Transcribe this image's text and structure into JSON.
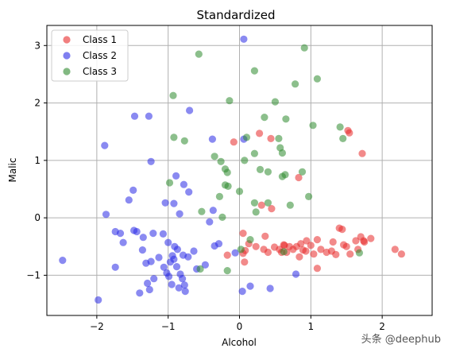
{
  "chart_data": {
    "type": "scatter",
    "title": "Standardized",
    "xlabel": "Alcohol",
    "ylabel": "Malic",
    "xlim": [
      -2.7,
      2.7
    ],
    "ylim": [
      -1.7,
      3.35
    ],
    "xticks": [
      -2,
      -1,
      0,
      1,
      2
    ],
    "yticks": [
      -1,
      0,
      1,
      2,
      3
    ],
    "grid": true,
    "legend_position": "upper-left",
    "series": [
      {
        "name": "Class 1",
        "color": "#e8292a",
        "points": [
          [
            -0.08,
            1.32
          ],
          [
            0.28,
            1.47
          ],
          [
            0.44,
            1.38
          ],
          [
            0.83,
            0.7
          ],
          [
            1.52,
            1.52
          ],
          [
            1.54,
            1.48
          ],
          [
            1.72,
            1.12
          ],
          [
            -0.17,
            -0.65
          ],
          [
            0.05,
            -0.27
          ],
          [
            0.13,
            -0.45
          ],
          [
            0.08,
            -0.57
          ],
          [
            0.07,
            -0.77
          ],
          [
            0.23,
            -0.5
          ],
          [
            0.36,
            -0.32
          ],
          [
            0.34,
            -0.55
          ],
          [
            0.4,
            -0.6
          ],
          [
            0.49,
            -0.51
          ],
          [
            0.56,
            -0.55
          ],
          [
            0.63,
            -0.48
          ],
          [
            0.66,
            -0.6
          ],
          [
            0.7,
            -0.5
          ],
          [
            0.75,
            -0.55
          ],
          [
            0.8,
            -0.5
          ],
          [
            0.86,
            -0.45
          ],
          [
            0.89,
            -0.56
          ],
          [
            0.94,
            -0.4
          ],
          [
            1.0,
            -0.48
          ],
          [
            1.04,
            -0.63
          ],
          [
            1.09,
            -0.38
          ],
          [
            1.14,
            -0.55
          ],
          [
            1.22,
            -0.6
          ],
          [
            1.29,
            -0.58
          ],
          [
            1.35,
            -0.64
          ],
          [
            1.4,
            -0.18
          ],
          [
            1.44,
            -0.2
          ],
          [
            1.46,
            -0.47
          ],
          [
            1.5,
            -0.5
          ],
          [
            1.55,
            -0.63
          ],
          [
            1.63,
            -0.4
          ],
          [
            1.66,
            -0.55
          ],
          [
            1.7,
            -0.33
          ],
          [
            1.74,
            -0.4
          ],
          [
            1.75,
            -0.42
          ],
          [
            1.84,
            -0.36
          ],
          [
            2.18,
            -0.55
          ],
          [
            2.27,
            -0.63
          ],
          [
            0.84,
            -0.68
          ],
          [
            1.09,
            -0.88
          ],
          [
            0.93,
            -0.58
          ],
          [
            0.62,
            -0.47
          ],
          [
            0.05,
            -0.62
          ],
          [
            0.31,
            0.22
          ],
          [
            0.45,
            0.16
          ],
          [
            0.59,
            -0.6
          ],
          [
            1.31,
            -0.42
          ]
        ]
      },
      {
        "name": "Class 2",
        "color": "#2a2ae6",
        "points": [
          [
            0.06,
            3.11
          ],
          [
            -0.7,
            1.87
          ],
          [
            -1.47,
            1.77
          ],
          [
            -1.27,
            1.77
          ],
          [
            -1.89,
            1.26
          ],
          [
            -0.38,
            1.37
          ],
          [
            0.06,
            1.37
          ],
          [
            -1.24,
            0.98
          ],
          [
            -0.89,
            0.73
          ],
          [
            -0.78,
            0.58
          ],
          [
            -0.71,
            0.45
          ],
          [
            -0.92,
            0.25
          ],
          [
            -1.49,
            0.48
          ],
          [
            -1.55,
            0.31
          ],
          [
            -1.04,
            0.26
          ],
          [
            -0.84,
            0.07
          ],
          [
            -0.37,
            0.13
          ],
          [
            -1.87,
            0.06
          ],
          [
            -0.42,
            -0.07
          ],
          [
            -1.74,
            -0.24
          ],
          [
            -1.67,
            -0.27
          ],
          [
            -1.63,
            -0.43
          ],
          [
            -1.48,
            -0.22
          ],
          [
            -1.44,
            -0.24
          ],
          [
            -1.21,
            -0.27
          ],
          [
            -1.07,
            -0.28
          ],
          [
            -1.0,
            -0.43
          ],
          [
            -0.91,
            -0.5
          ],
          [
            -0.79,
            -0.65
          ],
          [
            -0.72,
            -0.68
          ],
          [
            -0.64,
            -0.58
          ],
          [
            -0.35,
            -0.49
          ],
          [
            -0.29,
            -0.45
          ],
          [
            -1.36,
            -0.56
          ],
          [
            -1.31,
            -0.79
          ],
          [
            -1.24,
            -0.76
          ],
          [
            -1.13,
            -0.69
          ],
          [
            -1.06,
            -0.86
          ],
          [
            -1.02,
            -0.96
          ],
          [
            -0.99,
            -1.02
          ],
          [
            -0.97,
            -0.77
          ],
          [
            -0.92,
            -0.72
          ],
          [
            -0.88,
            -0.85
          ],
          [
            -0.83,
            -0.98
          ],
          [
            -0.8,
            -1.06
          ],
          [
            -0.77,
            -1.17
          ],
          [
            -0.76,
            -1.28
          ],
          [
            -1.2,
            -1.06
          ],
          [
            -1.26,
            -1.25
          ],
          [
            -1.29,
            -1.14
          ],
          [
            -1.4,
            -1.31
          ],
          [
            -1.74,
            -0.86
          ],
          [
            -2.48,
            -0.74
          ],
          [
            -1.98,
            -1.43
          ],
          [
            -0.6,
            -0.89
          ],
          [
            -0.48,
            -0.82
          ],
          [
            -0.06,
            -0.61
          ],
          [
            0.04,
            -1.28
          ],
          [
            0.15,
            -1.19
          ],
          [
            0.43,
            -1.23
          ],
          [
            0.79,
            -0.98
          ],
          [
            -1.35,
            -0.34
          ],
          [
            -0.94,
            -0.66
          ],
          [
            -0.87,
            -0.55
          ],
          [
            -0.95,
            -1.16
          ],
          [
            -0.85,
            -1.22
          ]
        ]
      },
      {
        "name": "Class 3",
        "color": "#2e8b2e",
        "points": [
          [
            -0.57,
            2.85
          ],
          [
            0.91,
            2.96
          ],
          [
            0.21,
            2.56
          ],
          [
            0.78,
            2.33
          ],
          [
            1.09,
            2.42
          ],
          [
            -0.93,
            2.13
          ],
          [
            -0.14,
            2.04
          ],
          [
            0.5,
            2.02
          ],
          [
            0.35,
            1.75
          ],
          [
            0.65,
            1.72
          ],
          [
            1.03,
            1.61
          ],
          [
            1.41,
            1.58
          ],
          [
            -0.92,
            1.4
          ],
          [
            -0.77,
            1.34
          ],
          [
            0.1,
            1.4
          ],
          [
            0.55,
            1.38
          ],
          [
            0.57,
            1.22
          ],
          [
            0.6,
            1.13
          ],
          [
            0.21,
            1.12
          ],
          [
            -0.35,
            1.07
          ],
          [
            -0.26,
            0.98
          ],
          [
            -0.2,
            0.85
          ],
          [
            0.07,
            1.0
          ],
          [
            0.29,
            0.84
          ],
          [
            0.4,
            0.8
          ],
          [
            0.64,
            0.75
          ],
          [
            0.88,
            0.8
          ],
          [
            0.6,
            0.72
          ],
          [
            -0.98,
            0.61
          ],
          [
            -0.2,
            0.57
          ],
          [
            -0.16,
            0.55
          ],
          [
            -0.28,
            0.37
          ],
          [
            0.0,
            0.46
          ],
          [
            0.21,
            0.26
          ],
          [
            0.4,
            0.26
          ],
          [
            0.71,
            0.22
          ],
          [
            0.97,
            0.37
          ],
          [
            -0.53,
            0.11
          ],
          [
            -0.24,
            0.01
          ],
          [
            1.45,
            1.38
          ],
          [
            -0.55,
            -0.89
          ],
          [
            -0.17,
            -0.92
          ],
          [
            0.02,
            -0.55
          ],
          [
            0.15,
            -0.38
          ],
          [
            0.62,
            -0.59
          ],
          [
            1.68,
            -0.61
          ],
          [
            -0.17,
            0.79
          ],
          [
            0.23,
            0.1
          ]
        ]
      }
    ]
  },
  "watermark": "头条 @deephub"
}
